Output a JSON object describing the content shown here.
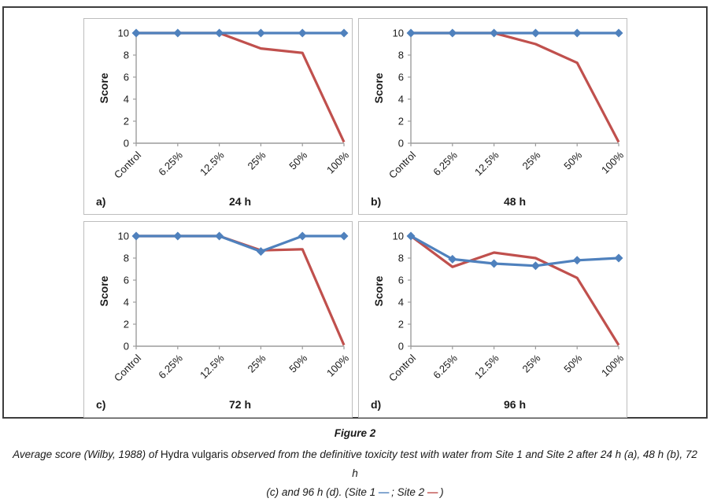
{
  "colors": {
    "site1": "#4F81BD",
    "site2": "#C0504D",
    "axis": "#9c9c9c",
    "tick_text": "#1a1a1a",
    "panel_border": "#bdbdbd",
    "outer_border": "#3d3d3d"
  },
  "caption": {
    "title": "Figure 2",
    "line1_pre": "Average score (Wilby, 1988) of ",
    "line1_species": "Hydra vulgaris",
    "line1_post": " observed from the definitive toxicity test with water from Site 1 and Site 2 after 24 h (a), 48 h (b), 72 h",
    "line2_pre": "(c) and 96 h (d). (Site 1 ",
    "site1_dash": "—",
    "line2_mid": " ; Site 2 ",
    "site2_dash": "—",
    "line2_post": " )"
  },
  "chart_data": [
    {
      "type": "line",
      "panel_label": "a)",
      "title": "24 h",
      "ylabel": "Score",
      "ylim": [
        0,
        10
      ],
      "yticks": [
        0,
        2,
        4,
        6,
        8,
        10
      ],
      "grid": false,
      "legend_position": "none",
      "categories": [
        "Control",
        "6.25%",
        "12.5%",
        "25%",
        "50%",
        "100%"
      ],
      "series": [
        {
          "name": "Site 1",
          "color": "#4F81BD",
          "marker": "diamond",
          "values": [
            10,
            10,
            10,
            10,
            10,
            10
          ]
        },
        {
          "name": "Site 2",
          "color": "#C0504D",
          "marker": "none",
          "values": [
            10,
            10,
            10,
            8.6,
            8.2,
            0.1
          ]
        }
      ]
    },
    {
      "type": "line",
      "panel_label": "b)",
      "title": "48 h",
      "ylabel": "Score",
      "ylim": [
        0,
        10
      ],
      "yticks": [
        0,
        2,
        4,
        6,
        8,
        10
      ],
      "grid": false,
      "legend_position": "none",
      "categories": [
        "Control",
        "6.25%",
        "12.5%",
        "25%",
        "50%",
        "100%"
      ],
      "series": [
        {
          "name": "Site 1",
          "color": "#4F81BD",
          "marker": "diamond",
          "values": [
            10,
            10,
            10,
            10,
            10,
            10
          ]
        },
        {
          "name": "Site 2",
          "color": "#C0504D",
          "marker": "none",
          "values": [
            10,
            10,
            10,
            9.0,
            7.3,
            0.1
          ]
        }
      ]
    },
    {
      "type": "line",
      "panel_label": "c)",
      "title": "72 h",
      "ylabel": "Score",
      "ylim": [
        0,
        10
      ],
      "yticks": [
        0,
        2,
        4,
        6,
        8,
        10
      ],
      "grid": false,
      "legend_position": "none",
      "categories": [
        "Control",
        "6.25%",
        "12.5%",
        "25%",
        "50%",
        "100%"
      ],
      "series": [
        {
          "name": "Site 1",
          "color": "#4F81BD",
          "marker": "diamond",
          "values": [
            10,
            10,
            10,
            8.6,
            10,
            10
          ]
        },
        {
          "name": "Site 2",
          "color": "#C0504D",
          "marker": "none",
          "values": [
            10,
            10,
            10,
            8.7,
            8.8,
            0.1
          ]
        }
      ]
    },
    {
      "type": "line",
      "panel_label": "d)",
      "title": "96 h",
      "ylabel": "Score",
      "ylim": [
        0,
        10
      ],
      "yticks": [
        0,
        2,
        4,
        6,
        8,
        10
      ],
      "grid": false,
      "legend_position": "none",
      "categories": [
        "Control",
        "6.25%",
        "12.5%",
        "25%",
        "50%",
        "100%"
      ],
      "series": [
        {
          "name": "Site 1",
          "color": "#4F81BD",
          "marker": "diamond",
          "values": [
            10,
            7.9,
            7.5,
            7.3,
            7.8,
            8.0
          ]
        },
        {
          "name": "Site 2",
          "color": "#C0504D",
          "marker": "none",
          "values": [
            10,
            7.2,
            8.5,
            8.0,
            6.2,
            0.1
          ]
        }
      ]
    }
  ]
}
